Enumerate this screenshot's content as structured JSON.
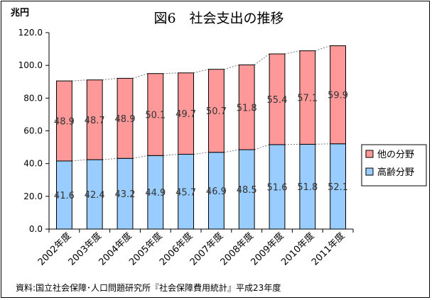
{
  "chart_data": {
    "type": "bar",
    "stacked": true,
    "title": "図6　社会支出の推移",
    "ylabel": "兆円",
    "ylim": [
      0,
      120
    ],
    "yticks": [
      "0.0",
      "20.0",
      "40.0",
      "60.0",
      "80.0",
      "100.0",
      "120.0"
    ],
    "categories": [
      "2002年度",
      "2003年度",
      "2004年度",
      "2005年度",
      "2006年度",
      "2007年度",
      "2008年度",
      "2009年度",
      "2010年度",
      "2011年度"
    ],
    "series": [
      {
        "name": "高齢分野",
        "color": "#99ccff",
        "values": [
          41.6,
          42.4,
          43.2,
          44.9,
          45.7,
          46.9,
          48.5,
          51.6,
          51.8,
          52.1
        ],
        "labels": [
          "41.6",
          "42.4",
          "43.2",
          "44.9",
          "45.7",
          "46.9",
          "48.5",
          "51.6",
          "51.8",
          "52.1"
        ]
      },
      {
        "name": "他の分野",
        "color": "#ff9999",
        "values": [
          48.9,
          48.7,
          48.9,
          50.1,
          49.7,
          50.7,
          51.8,
          55.4,
          57.1,
          59.9
        ],
        "labels": [
          "48.9",
          "48.7",
          "48.9",
          "50.1",
          "49.7",
          "50.7",
          "51.8",
          "55.4",
          "57.1",
          "59.9"
        ]
      }
    ],
    "legend_position": "right",
    "legend_order": [
      "他の分野",
      "高齢分野"
    ],
    "connector_lines": true,
    "source": "資料:国立社会保障･人口問題研究所『社会保障費用統計』平成23年度"
  }
}
